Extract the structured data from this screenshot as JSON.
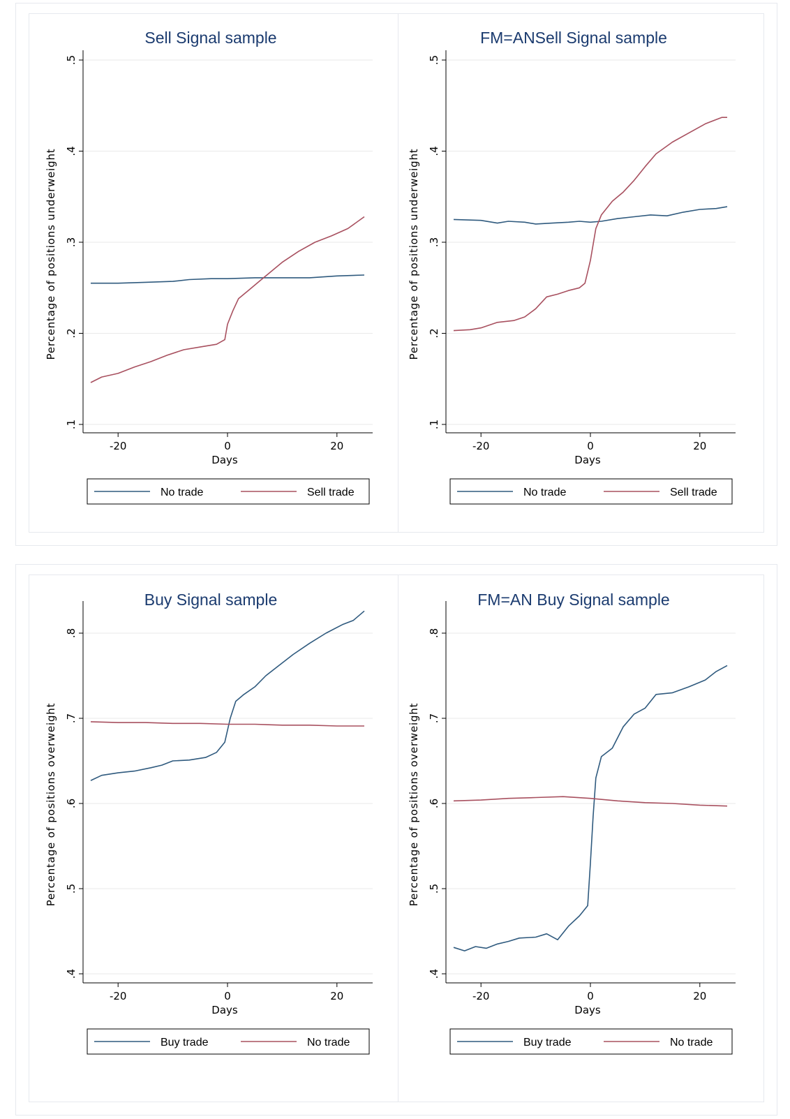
{
  "colors": {
    "blue": "#2f5a7e",
    "red": "#a8505f",
    "title": "#1b3b6f",
    "grid": "#eaeaea"
  },
  "chart_data": [
    {
      "type": "line",
      "title": "Sell Signal sample",
      "xlabel": "Days",
      "ylabel": "Percentage of positions underweight",
      "xlim": [
        -25,
        25
      ],
      "ylim": [
        0.1,
        0.5
      ],
      "xticks": [
        -20,
        0,
        20
      ],
      "xtick_labels": [
        "-20",
        "0",
        "20"
      ],
      "yticks": [
        0.1,
        0.2,
        0.3,
        0.4,
        0.5
      ],
      "ytick_labels": [
        ".1",
        ".2",
        ".3",
        ".4",
        ".5"
      ],
      "grid": true,
      "legend": "bottom",
      "series": [
        {
          "name": "No trade",
          "color": "#2f5a7e",
          "points": [
            [
              -25,
              0.255
            ],
            [
              -20,
              0.255
            ],
            [
              -15,
              0.256
            ],
            [
              -10,
              0.257
            ],
            [
              -7,
              0.259
            ],
            [
              -3,
              0.26
            ],
            [
              0,
              0.26
            ],
            [
              5,
              0.261
            ],
            [
              10,
              0.261
            ],
            [
              15,
              0.261
            ],
            [
              20,
              0.263
            ],
            [
              25,
              0.264
            ]
          ]
        },
        {
          "name": "Sell trade",
          "color": "#a8505f",
          "points": [
            [
              -25,
              0.146
            ],
            [
              -23,
              0.152
            ],
            [
              -20,
              0.156
            ],
            [
              -17,
              0.163
            ],
            [
              -14,
              0.169
            ],
            [
              -11,
              0.176
            ],
            [
              -8,
              0.182
            ],
            [
              -5,
              0.185
            ],
            [
              -2,
              0.188
            ],
            [
              -0.5,
              0.193
            ],
            [
              0,
              0.21
            ],
            [
              1,
              0.225
            ],
            [
              2,
              0.238
            ],
            [
              4,
              0.248
            ],
            [
              6,
              0.258
            ],
            [
              8,
              0.268
            ],
            [
              10,
              0.278
            ],
            [
              13,
              0.29
            ],
            [
              16,
              0.3
            ],
            [
              19,
              0.307
            ],
            [
              22,
              0.315
            ],
            [
              25,
              0.328
            ]
          ]
        }
      ]
    },
    {
      "type": "line",
      "title": "FM=ANSell Signal sample",
      "xlabel": "Days",
      "ylabel": "Percentage of positions underweight",
      "xlim": [
        -25,
        25
      ],
      "ylim": [
        0.1,
        0.5
      ],
      "xticks": [
        -20,
        0,
        20
      ],
      "xtick_labels": [
        "-20",
        "0",
        "20"
      ],
      "yticks": [
        0.1,
        0.2,
        0.3,
        0.4,
        0.5
      ],
      "ytick_labels": [
        ".1",
        ".2",
        ".3",
        ".4",
        ".5"
      ],
      "grid": true,
      "legend": "bottom",
      "series": [
        {
          "name": "No trade",
          "color": "#2f5a7e",
          "points": [
            [
              -25,
              0.325
            ],
            [
              -20,
              0.324
            ],
            [
              -17,
              0.321
            ],
            [
              -15,
              0.323
            ],
            [
              -12,
              0.322
            ],
            [
              -10,
              0.32
            ],
            [
              -7,
              0.321
            ],
            [
              -4,
              0.322
            ],
            [
              -2,
              0.323
            ],
            [
              0,
              0.322
            ],
            [
              2,
              0.323
            ],
            [
              5,
              0.326
            ],
            [
              8,
              0.328
            ],
            [
              11,
              0.33
            ],
            [
              14,
              0.329
            ],
            [
              17,
              0.333
            ],
            [
              20,
              0.336
            ],
            [
              23,
              0.337
            ],
            [
              25,
              0.339
            ]
          ]
        },
        {
          "name": "Sell trade",
          "color": "#a8505f",
          "points": [
            [
              -25,
              0.203
            ],
            [
              -22,
              0.204
            ],
            [
              -20,
              0.206
            ],
            [
              -17,
              0.212
            ],
            [
              -14,
              0.214
            ],
            [
              -12,
              0.218
            ],
            [
              -10,
              0.227
            ],
            [
              -8,
              0.24
            ],
            [
              -6,
              0.243
            ],
            [
              -4,
              0.247
            ],
            [
              -2,
              0.25
            ],
            [
              -1,
              0.255
            ],
            [
              0,
              0.28
            ],
            [
              1,
              0.315
            ],
            [
              2,
              0.33
            ],
            [
              4,
              0.345
            ],
            [
              6,
              0.355
            ],
            [
              8,
              0.368
            ],
            [
              10,
              0.383
            ],
            [
              12,
              0.397
            ],
            [
              15,
              0.41
            ],
            [
              18,
              0.42
            ],
            [
              21,
              0.43
            ],
            [
              24,
              0.437
            ],
            [
              25,
              0.437
            ]
          ]
        }
      ]
    },
    {
      "type": "line",
      "title": "Buy Signal sample",
      "xlabel": "Days",
      "ylabel": "Percentage of positions overweight",
      "xlim": [
        -25,
        25
      ],
      "ylim": [
        0.4,
        0.8
      ],
      "xticks": [
        -20,
        0,
        20
      ],
      "xtick_labels": [
        "-20",
        "0",
        "20"
      ],
      "yticks": [
        0.4,
        0.5,
        0.6,
        0.7,
        0.8
      ],
      "ytick_labels": [
        ".4",
        ".5",
        ".6",
        ".7",
        ".8"
      ],
      "grid": true,
      "legend": "bottom",
      "series": [
        {
          "name": "Buy trade",
          "color": "#2f5a7e",
          "points": [
            [
              -25,
              0.627
            ],
            [
              -23,
              0.633
            ],
            [
              -20,
              0.636
            ],
            [
              -17,
              0.638
            ],
            [
              -14,
              0.642
            ],
            [
              -12,
              0.645
            ],
            [
              -10,
              0.65
            ],
            [
              -7,
              0.651
            ],
            [
              -4,
              0.654
            ],
            [
              -2,
              0.66
            ],
            [
              -0.5,
              0.672
            ],
            [
              0.5,
              0.7
            ],
            [
              1.5,
              0.72
            ],
            [
              3,
              0.728
            ],
            [
              5,
              0.737
            ],
            [
              7,
              0.75
            ],
            [
              9,
              0.76
            ],
            [
              12,
              0.775
            ],
            [
              15,
              0.788
            ],
            [
              18,
              0.8
            ],
            [
              21,
              0.81
            ],
            [
              23,
              0.815
            ],
            [
              25,
              0.826
            ]
          ]
        },
        {
          "name": "No trade",
          "color": "#a8505f",
          "points": [
            [
              -25,
              0.696
            ],
            [
              -20,
              0.695
            ],
            [
              -15,
              0.695
            ],
            [
              -10,
              0.694
            ],
            [
              -5,
              0.694
            ],
            [
              0,
              0.693
            ],
            [
              5,
              0.693
            ],
            [
              10,
              0.692
            ],
            [
              15,
              0.692
            ],
            [
              20,
              0.691
            ],
            [
              25,
              0.691
            ]
          ]
        }
      ]
    },
    {
      "type": "line",
      "title": "FM=AN Buy Signal sample",
      "xlabel": "Days",
      "ylabel": "Percentage of positions overweight",
      "xlim": [
        -25,
        25
      ],
      "ylim": [
        0.4,
        0.8
      ],
      "xticks": [
        -20,
        0,
        20
      ],
      "xtick_labels": [
        "-20",
        "0",
        "20"
      ],
      "yticks": [
        0.4,
        0.5,
        0.6,
        0.7,
        0.8
      ],
      "ytick_labels": [
        ".4",
        ".5",
        ".6",
        ".7",
        ".8"
      ],
      "grid": true,
      "legend": "bottom",
      "series": [
        {
          "name": "Buy trade",
          "color": "#2f5a7e",
          "points": [
            [
              -25,
              0.431
            ],
            [
              -23,
              0.427
            ],
            [
              -21,
              0.432
            ],
            [
              -19,
              0.43
            ],
            [
              -17,
              0.435
            ],
            [
              -15,
              0.438
            ],
            [
              -13,
              0.442
            ],
            [
              -10,
              0.443
            ],
            [
              -8,
              0.447
            ],
            [
              -6,
              0.44
            ],
            [
              -4,
              0.456
            ],
            [
              -2,
              0.468
            ],
            [
              -0.5,
              0.48
            ],
            [
              0,
              0.53
            ],
            [
              0.5,
              0.585
            ],
            [
              1,
              0.63
            ],
            [
              2,
              0.655
            ],
            [
              4,
              0.665
            ],
            [
              6,
              0.69
            ],
            [
              8,
              0.705
            ],
            [
              10,
              0.712
            ],
            [
              12,
              0.728
            ],
            [
              15,
              0.73
            ],
            [
              18,
              0.737
            ],
            [
              21,
              0.745
            ],
            [
              23,
              0.755
            ],
            [
              25,
              0.762
            ]
          ]
        },
        {
          "name": "No trade",
          "color": "#a8505f",
          "points": [
            [
              -25,
              0.603
            ],
            [
              -20,
              0.604
            ],
            [
              -15,
              0.606
            ],
            [
              -10,
              0.607
            ],
            [
              -5,
              0.608
            ],
            [
              0,
              0.606
            ],
            [
              5,
              0.603
            ],
            [
              10,
              0.601
            ],
            [
              15,
              0.6
            ],
            [
              20,
              0.598
            ],
            [
              25,
              0.597
            ]
          ]
        }
      ]
    }
  ]
}
